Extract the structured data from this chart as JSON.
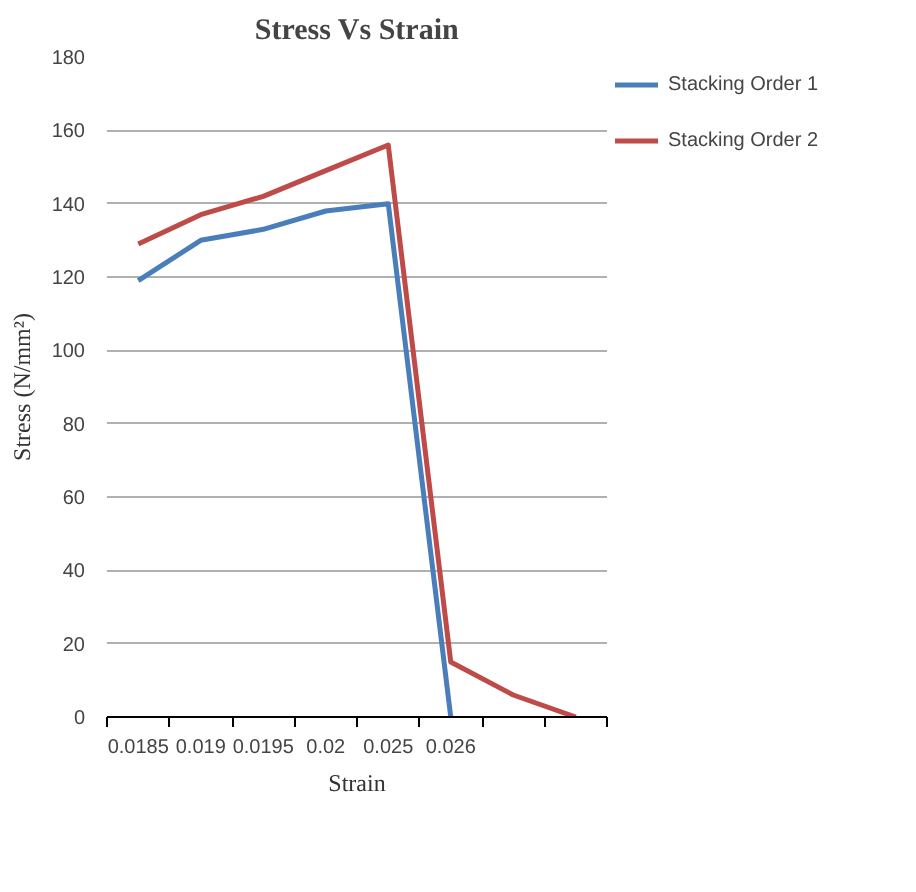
{
  "chart_data": {
    "type": "line",
    "title": "Stress Vs Strain",
    "xlabel": "Strain",
    "ylabel": "Stress (N/mm²)",
    "categories": [
      "0.0185",
      "0.019",
      "0.0195",
      "0.02",
      "0.025",
      "0.026",
      null,
      null
    ],
    "series": [
      {
        "name": "Stacking Order 1",
        "color": "#4a7ebb",
        "values": [
          119,
          130,
          133,
          138,
          140,
          0,
          null,
          null
        ]
      },
      {
        "name": "Stacking Order 2",
        "color": "#be4b48",
        "values": [
          129,
          137,
          142,
          149,
          156,
          15,
          6,
          0
        ]
      }
    ],
    "ylim": [
      0,
      180
    ],
    "yticks": [
      0,
      20,
      40,
      60,
      80,
      100,
      120,
      140,
      160,
      180
    ],
    "grid": "y",
    "legend": "right",
    "marker": "none",
    "line_style": "solid"
  }
}
